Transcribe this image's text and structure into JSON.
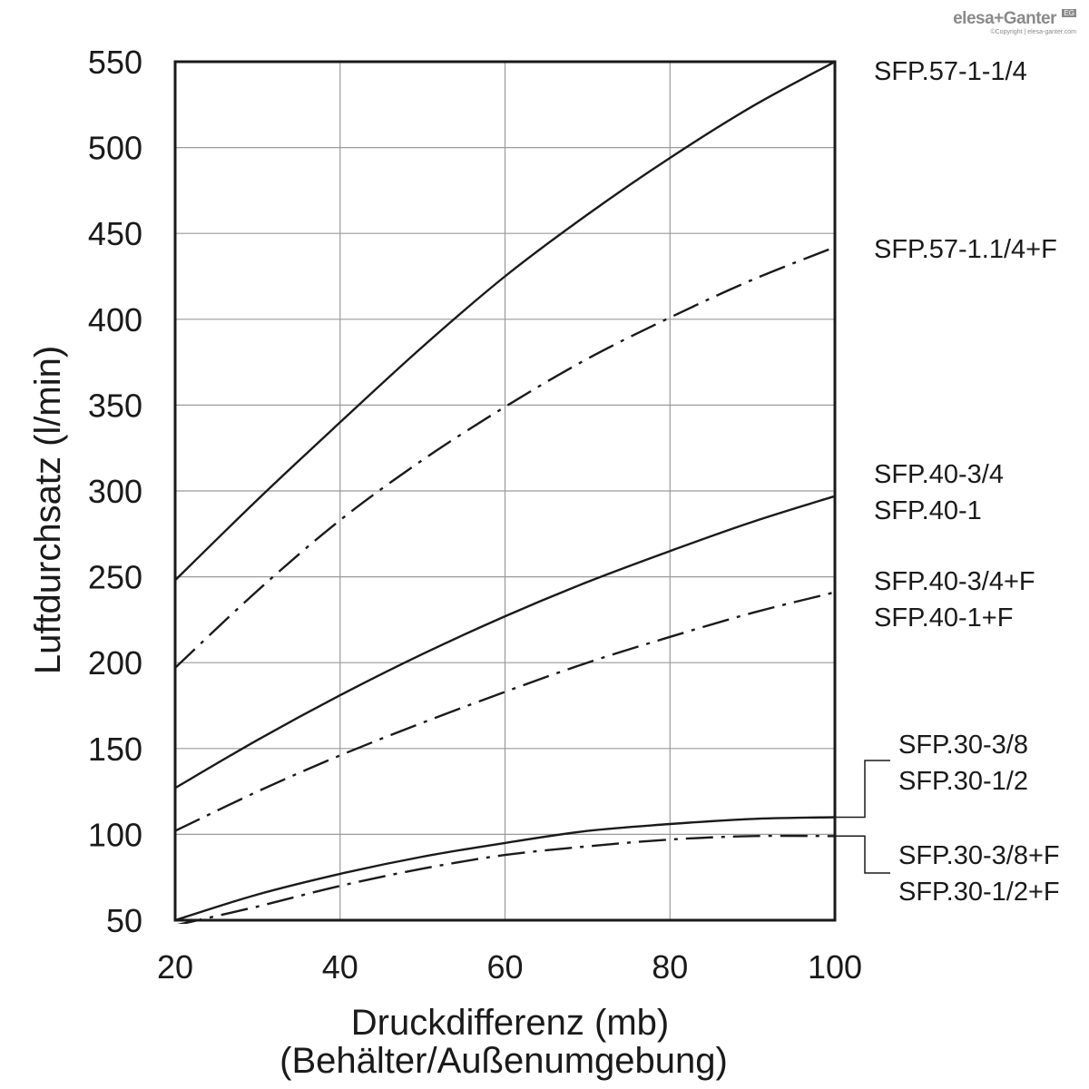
{
  "logo": {
    "name": "elesa+Ganter",
    "badge": "EG",
    "copyright": "©Copyright | elesa-ganter.com"
  },
  "chart_data": {
    "type": "line",
    "xlabel": "Druckdifferenz (mb)",
    "xlabel_sub": "(Behälter/Außenumgebung)",
    "ylabel": "Luftdurchsatz (l/min)",
    "xlim": [
      20,
      100
    ],
    "ylim": [
      50,
      550
    ],
    "xticks": [
      20,
      40,
      60,
      80,
      100
    ],
    "yticks": [
      50,
      100,
      150,
      200,
      250,
      300,
      350,
      400,
      450,
      500,
      550
    ],
    "grid": true,
    "x": [
      20,
      30,
      40,
      50,
      60,
      70,
      80,
      90,
      100
    ],
    "series": [
      {
        "name": "SFP.57-1-1/4",
        "labels": [
          "SFP.57-1-1/4"
        ],
        "style": "solid",
        "values": [
          248,
          295,
          340,
          384,
          425,
          461,
          494,
          524,
          550
        ]
      },
      {
        "name": "SFP.57-1.1/4+F",
        "labels": [
          "SFP.57-1.1/4+F"
        ],
        "style": "dashdot",
        "values": [
          197,
          242,
          283,
          318,
          349,
          377,
          401,
          423,
          442
        ]
      },
      {
        "name": "SFP.40-3/4 / SFP.40-1",
        "labels": [
          "SFP.40-3/4",
          "SFP.40-1"
        ],
        "style": "solid",
        "values": [
          127,
          155,
          181,
          205,
          227,
          247,
          265,
          282,
          297
        ]
      },
      {
        "name": "SFP.40-3/4+F / SFP.40-1+F",
        "labels": [
          "SFP.40-3/4+F",
          "SFP.40-1+F"
        ],
        "style": "dashdot",
        "values": [
          102,
          125,
          146,
          165,
          183,
          200,
          215,
          229,
          241
        ]
      },
      {
        "name": "SFP.30-3/8 / SFP.30-1/2",
        "labels": [
          "SFP.30-3/8",
          "SFP.30-1/2"
        ],
        "style": "solid",
        "values": [
          50,
          65,
          77,
          87,
          95,
          102,
          106,
          109,
          110
        ]
      },
      {
        "name": "SFP.30-3/8+F / SFP.30-1/2+F",
        "labels": [
          "SFP.30-3/8+F",
          "SFP.30-1/2+F"
        ],
        "style": "dashdot",
        "values": [
          47,
          58,
          70,
          80,
          88,
          93,
          97,
          99,
          99
        ]
      }
    ]
  }
}
